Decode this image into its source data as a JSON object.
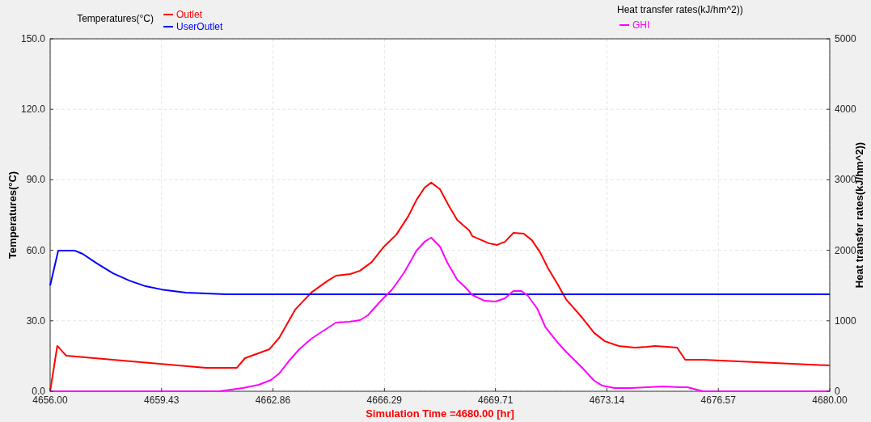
{
  "chart_data": {
    "type": "line",
    "xlabel": "Simulation Time =4680.00 [hr]",
    "ylabel": "Temperatures(°C)",
    "y2label": "Heat transfer rates(kJ/hm^2))",
    "legend_title": "Temperatures(°C)",
    "annotations": [
      "Heat transfer rates(kJ/hm^2))"
    ],
    "legend": "top",
    "grid": true,
    "marker": "none",
    "line_style": "solid",
    "xlim": [
      4656,
      4680
    ],
    "xticks": [
      {
        "value": 4656,
        "label": "4656.00"
      },
      4659.43,
      4662.86,
      4666.29,
      4669.71,
      4673.14,
      4676.57,
      {
        "value": 4680,
        "label": "4680.00"
      }
    ],
    "ylim": [
      0,
      150
    ],
    "yticks": [
      {
        "value": 0,
        "label": "0.0"
      },
      {
        "value": 30,
        "label": "30.0"
      },
      {
        "value": 60,
        "label": "60.0"
      },
      {
        "value": 90,
        "label": "90.0"
      },
      {
        "value": 120,
        "label": "120.0"
      },
      {
        "value": 150,
        "label": "150.0"
      }
    ],
    "y2lim": [
      0,
      5000
    ],
    "y2ticks": [
      0,
      1000,
      2000,
      3000,
      4000,
      5000
    ],
    "series": [
      {
        "name": "Outlet",
        "color": "#ff0000",
        "x": [
          4656,
          4656.22,
          4656.5,
          4660.8,
          4661.75,
          4662.0,
          4662.75,
          4663.05,
          4663.54,
          4664.04,
          4664.54,
          4664.8,
          4665.24,
          4665.54,
          4665.9,
          4666.28,
          4666.66,
          4667.03,
          4667.28,
          4667.53,
          4667.73,
          4668.0,
          4668.28,
          4668.53,
          4668.9,
          4669.0,
          4669.5,
          4669.76,
          4670.0,
          4670.26,
          4670.58,
          4670.83,
          4671.08,
          4671.33,
          4671.63,
          4671.88,
          4672.38,
          4672.75,
          4673.08,
          4673.5,
          4674.0,
          4674.37,
          4674.62,
          4674.99,
          4675.3,
          4675.55,
          4676.1,
          4680
        ],
        "values": [
          0,
          19.3,
          15.1,
          10,
          10,
          14.1,
          17.9,
          22.7,
          34.7,
          42,
          47,
          49.2,
          49.9,
          51.3,
          55,
          61.6,
          66.7,
          74.6,
          81.5,
          86.7,
          88.8,
          86,
          78.8,
          72.9,
          68.5,
          66,
          63,
          62.3,
          63.6,
          67.4,
          67.1,
          64.3,
          59.2,
          52.3,
          45.4,
          39.2,
          31.3,
          24.8,
          21.3,
          19.3,
          18.6,
          18.9,
          19.3,
          18.9,
          18.6,
          13.4,
          13.4,
          11
        ]
      },
      {
        "name": "UserOutlet",
        "color": "#0000ff",
        "x": [
          4656,
          4656.25,
          4656.75,
          4657.0,
          4657.44,
          4657.94,
          4658.44,
          4658.94,
          4659.44,
          4660.18,
          4661.43,
          4680
        ],
        "values": [
          45,
          59.9,
          59.9,
          58.5,
          54.4,
          50.2,
          47.1,
          44.7,
          43.3,
          42,
          41.3,
          41.3
        ]
      },
      {
        "name": "GHI",
        "color": "#ff00ff",
        "axis": "y2",
        "x": [
          4656,
          4661.2,
          4661.93,
          4662.42,
          4662.8,
          4663.05,
          4663.34,
          4663.67,
          4664.04,
          4664.42,
          4664.8,
          4665.21,
          4665.54,
          4665.78,
          4666.16,
          4666.53,
          4666.9,
          4667.28,
          4667.53,
          4667.73,
          4668.0,
          4668.23,
          4668.53,
          4668.77,
          4669.0,
          4669.38,
          4669.71,
          4670.0,
          4670.26,
          4670.51,
          4670.71,
          4671.0,
          4671.25,
          4671.63,
          4671.88,
          4672.38,
          4672.75,
          4673.0,
          4673.38,
          4673.88,
          4674.37,
          4674.87,
          4675.37,
          4675.62,
          4676.1,
          4680
        ],
        "values": [
          0,
          0,
          46,
          92,
          161,
          252,
          424,
          596,
          745,
          860,
          975,
          986,
          1009,
          1078,
          1273,
          1445,
          1686,
          1995,
          2122,
          2179,
          2053,
          1823,
          1583,
          1479,
          1365,
          1284,
          1273,
          1319,
          1422,
          1422,
          1353,
          1170,
          906,
          688,
          562,
          333,
          149,
          80,
          46,
          46,
          57,
          69,
          57,
          57,
          0,
          0
        ]
      }
    ]
  }
}
